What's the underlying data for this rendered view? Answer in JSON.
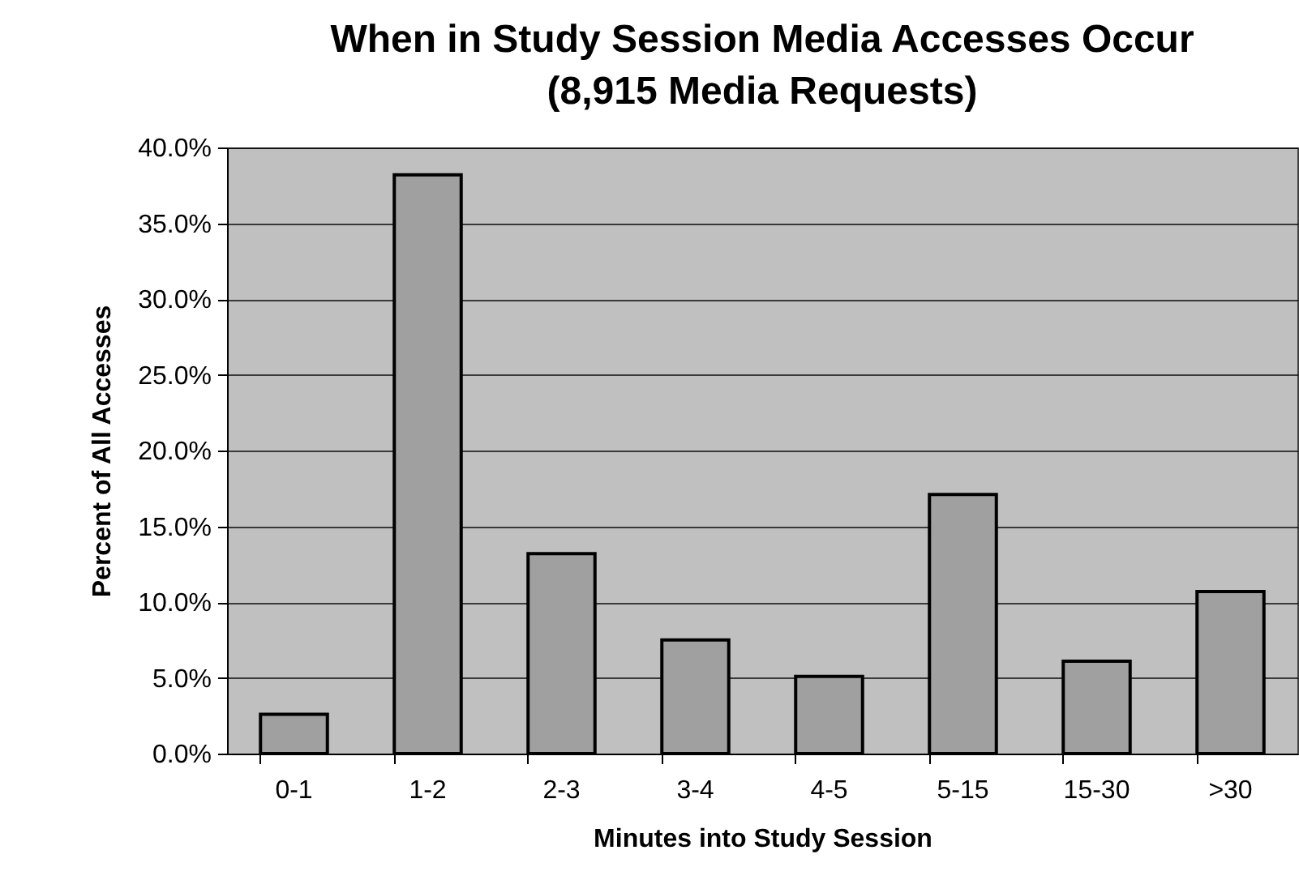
{
  "chart_data": {
    "type": "bar",
    "title": "When in Study Session Media Accesses Occur\n(8,915 Media Requests)",
    "xlabel": "Minutes into Study Session",
    "ylabel": "Percent of All Accesses",
    "categories": [
      "0-1",
      "1-2",
      "2-3",
      "3-4",
      "4-5",
      "5-15",
      "15-30",
      ">30"
    ],
    "values": [
      2.6,
      38.2,
      13.2,
      7.5,
      5.1,
      17.1,
      6.1,
      10.7
    ],
    "color": "#a0a0a0",
    "ylim": [
      0,
      40
    ],
    "yticks": [
      {
        "value": 0,
        "label": "0.0%"
      },
      {
        "value": 5,
        "label": "5.0%"
      },
      {
        "value": 10,
        "label": "10.0%"
      },
      {
        "value": 15,
        "label": "15.0%"
      },
      {
        "value": 20,
        "label": "20.0%"
      },
      {
        "value": 25,
        "label": "25.0%"
      },
      {
        "value": 30,
        "label": "30.0%"
      },
      {
        "value": 35,
        "label": "35.0%"
      },
      {
        "value": 40,
        "label": "40.0%"
      }
    ],
    "grid": "y"
  }
}
